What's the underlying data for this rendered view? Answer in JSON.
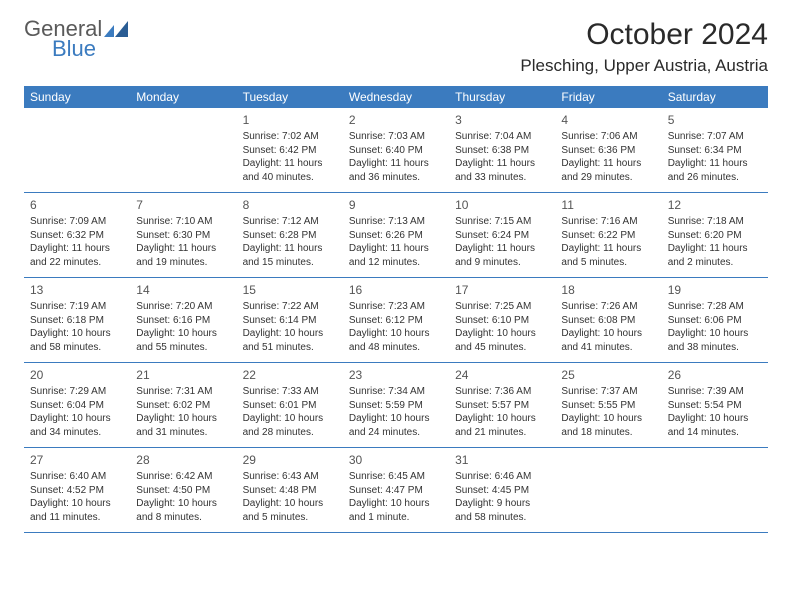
{
  "logo": {
    "text1": "General",
    "text2": "Blue"
  },
  "title": "October 2024",
  "location": "Plesching, Upper Austria, Austria",
  "colors": {
    "accent": "#3b7bbf",
    "text": "#333333",
    "header_text": "#ffffff"
  },
  "dayNames": [
    "Sunday",
    "Monday",
    "Tuesday",
    "Wednesday",
    "Thursday",
    "Friday",
    "Saturday"
  ],
  "weeks": [
    [
      null,
      null,
      {
        "n": "1",
        "sr": "7:02 AM",
        "ss": "6:42 PM",
        "dl": "11 hours and 40 minutes."
      },
      {
        "n": "2",
        "sr": "7:03 AM",
        "ss": "6:40 PM",
        "dl": "11 hours and 36 minutes."
      },
      {
        "n": "3",
        "sr": "7:04 AM",
        "ss": "6:38 PM",
        "dl": "11 hours and 33 minutes."
      },
      {
        "n": "4",
        "sr": "7:06 AM",
        "ss": "6:36 PM",
        "dl": "11 hours and 29 minutes."
      },
      {
        "n": "5",
        "sr": "7:07 AM",
        "ss": "6:34 PM",
        "dl": "11 hours and 26 minutes."
      }
    ],
    [
      {
        "n": "6",
        "sr": "7:09 AM",
        "ss": "6:32 PM",
        "dl": "11 hours and 22 minutes."
      },
      {
        "n": "7",
        "sr": "7:10 AM",
        "ss": "6:30 PM",
        "dl": "11 hours and 19 minutes."
      },
      {
        "n": "8",
        "sr": "7:12 AM",
        "ss": "6:28 PM",
        "dl": "11 hours and 15 minutes."
      },
      {
        "n": "9",
        "sr": "7:13 AM",
        "ss": "6:26 PM",
        "dl": "11 hours and 12 minutes."
      },
      {
        "n": "10",
        "sr": "7:15 AM",
        "ss": "6:24 PM",
        "dl": "11 hours and 9 minutes."
      },
      {
        "n": "11",
        "sr": "7:16 AM",
        "ss": "6:22 PM",
        "dl": "11 hours and 5 minutes."
      },
      {
        "n": "12",
        "sr": "7:18 AM",
        "ss": "6:20 PM",
        "dl": "11 hours and 2 minutes."
      }
    ],
    [
      {
        "n": "13",
        "sr": "7:19 AM",
        "ss": "6:18 PM",
        "dl": "10 hours and 58 minutes."
      },
      {
        "n": "14",
        "sr": "7:20 AM",
        "ss": "6:16 PM",
        "dl": "10 hours and 55 minutes."
      },
      {
        "n": "15",
        "sr": "7:22 AM",
        "ss": "6:14 PM",
        "dl": "10 hours and 51 minutes."
      },
      {
        "n": "16",
        "sr": "7:23 AM",
        "ss": "6:12 PM",
        "dl": "10 hours and 48 minutes."
      },
      {
        "n": "17",
        "sr": "7:25 AM",
        "ss": "6:10 PM",
        "dl": "10 hours and 45 minutes."
      },
      {
        "n": "18",
        "sr": "7:26 AM",
        "ss": "6:08 PM",
        "dl": "10 hours and 41 minutes."
      },
      {
        "n": "19",
        "sr": "7:28 AM",
        "ss": "6:06 PM",
        "dl": "10 hours and 38 minutes."
      }
    ],
    [
      {
        "n": "20",
        "sr": "7:29 AM",
        "ss": "6:04 PM",
        "dl": "10 hours and 34 minutes."
      },
      {
        "n": "21",
        "sr": "7:31 AM",
        "ss": "6:02 PM",
        "dl": "10 hours and 31 minutes."
      },
      {
        "n": "22",
        "sr": "7:33 AM",
        "ss": "6:01 PM",
        "dl": "10 hours and 28 minutes."
      },
      {
        "n": "23",
        "sr": "7:34 AM",
        "ss": "5:59 PM",
        "dl": "10 hours and 24 minutes."
      },
      {
        "n": "24",
        "sr": "7:36 AM",
        "ss": "5:57 PM",
        "dl": "10 hours and 21 minutes."
      },
      {
        "n": "25",
        "sr": "7:37 AM",
        "ss": "5:55 PM",
        "dl": "10 hours and 18 minutes."
      },
      {
        "n": "26",
        "sr": "7:39 AM",
        "ss": "5:54 PM",
        "dl": "10 hours and 14 minutes."
      }
    ],
    [
      {
        "n": "27",
        "sr": "6:40 AM",
        "ss": "4:52 PM",
        "dl": "10 hours and 11 minutes."
      },
      {
        "n": "28",
        "sr": "6:42 AM",
        "ss": "4:50 PM",
        "dl": "10 hours and 8 minutes."
      },
      {
        "n": "29",
        "sr": "6:43 AM",
        "ss": "4:48 PM",
        "dl": "10 hours and 5 minutes."
      },
      {
        "n": "30",
        "sr": "6:45 AM",
        "ss": "4:47 PM",
        "dl": "10 hours and 1 minute."
      },
      {
        "n": "31",
        "sr": "6:46 AM",
        "ss": "4:45 PM",
        "dl": "9 hours and 58 minutes."
      },
      null,
      null
    ]
  ],
  "labels": {
    "sunrise": "Sunrise:",
    "sunset": "Sunset:",
    "daylight": "Daylight:"
  }
}
